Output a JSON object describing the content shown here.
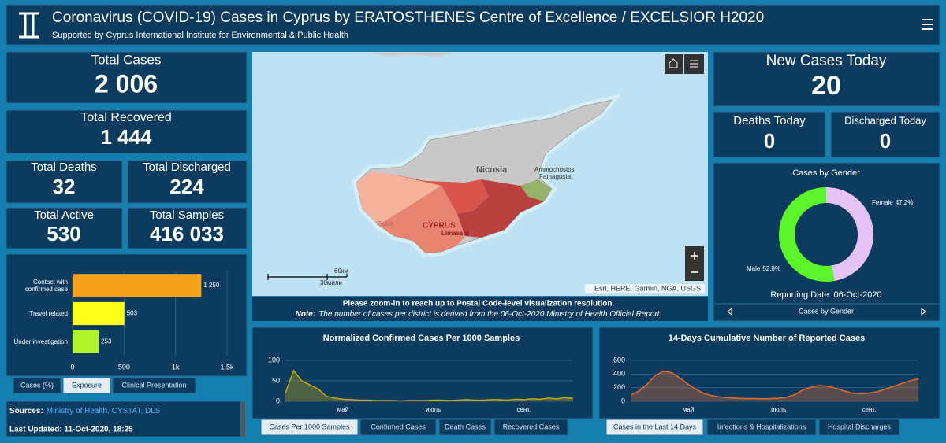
{
  "header": {
    "title": "Coronavirus (COVID-19) Cases in Cyprus by ERATOSTHENES Centre of Excellence / EXCELSIOR H2020",
    "subtitle": "Supported by Cyprus International Institute for Environmental & Public Health"
  },
  "stats": [
    {
      "label": "Total Cases",
      "value": "2 006"
    },
    {
      "label": "Total Recovered",
      "value": "1 444"
    },
    {
      "label": "Total Deaths",
      "value": "32"
    },
    {
      "label": "Total Discharged",
      "value": "224"
    },
    {
      "label": "Total Active",
      "value": "530"
    },
    {
      "label": "Total Samples",
      "value": "416 033"
    },
    {
      "label": "New Cases Today",
      "value": "20"
    },
    {
      "label": "Deaths Today",
      "value": "0"
    },
    {
      "label": "Discharged Today",
      "value": "0"
    }
  ],
  "map": {
    "labels": [
      "Nicosia",
      "Ammochostos",
      "Famagusta",
      "CYPRUS",
      "Limassol",
      "Pafos"
    ],
    "scale": [
      "60км",
      "30мили"
    ],
    "attribution": "Esri, HERE, Garmin, NGA, USGS",
    "zoom_note": "Please zoom-in to reach up to Postal Code-level visualization resolution.",
    "note_label": "Note:",
    "note_text": "The number of cases per district is derived from the 06-Oct-2020 Ministry of Health Official Report."
  },
  "sources": {
    "label": "Sources:",
    "links": "Ministry of Health, CYSTAT, DLS",
    "last_updated": "Last Updated: 11-Oct-2020, 18:25"
  },
  "tabs": {
    "exposure": [
      "Cases (%)",
      "Exposure",
      "Clinical Presentation"
    ],
    "samples": [
      "Cases Per 1000 Samples",
      "Confirmed Cases",
      "Death Cases",
      "Recovered Cases"
    ],
    "cumulative": [
      "Cases in the Last 14 Days",
      "Infections & Hospitalizations",
      "Hospital Discharges"
    ],
    "gender": "Cases by Gender"
  },
  "chart_data": [
    {
      "type": "hbar",
      "categories": [
        "Contact with confirmed case",
        "Travel related",
        "Under investigation"
      ],
      "values": [
        1250,
        503,
        253
      ],
      "value_labels": [
        "1 250",
        "503",
        "253"
      ],
      "colors": [
        "#f5a21a",
        "#ffff1a",
        "#b0f52a"
      ],
      "xlim": [
        0,
        1500
      ],
      "xticks": [
        0,
        500,
        {
          "value": 1000,
          "label": "1k"
        },
        {
          "value": 1500,
          "label": "1,5k"
        }
      ],
      "grid": true
    },
    {
      "type": "donut",
      "title": "Cases by Gender",
      "subtitle": "Reporting Date: 06-Oct-2020",
      "categories": [
        "Female",
        "Male"
      ],
      "values": [
        47.2,
        52.8
      ],
      "value_labels": [
        "47,2%",
        "52,8%"
      ],
      "colors": [
        "#e6c3f5",
        "#5cf52a"
      ]
    },
    {
      "type": "area",
      "title": "Normalized Confirmed Cases Per 1000 Samples",
      "categories": [
        null,
        null,
        null,
        null,
        null,
        null,
        null,
        "май",
        null,
        null,
        null,
        null,
        null,
        null,
        null,
        null,
        null,
        null,
        "июль",
        null,
        null,
        null,
        null,
        null,
        null,
        null,
        null,
        null,
        null,
        "сент.",
        null,
        null,
        null,
        null,
        null,
        null
      ],
      "values": [
        20,
        75,
        50,
        40,
        30,
        12,
        8,
        5,
        4,
        3,
        3,
        2,
        2,
        2,
        1,
        2,
        2,
        2,
        3,
        3,
        2,
        3,
        4,
        3,
        3,
        4,
        4,
        3,
        5,
        4,
        6,
        5,
        8,
        6,
        9,
        7
      ],
      "color": "#c9a60f",
      "ylim": [
        0,
        100
      ],
      "yticks": [
        0,
        50,
        100
      ]
    },
    {
      "type": "area",
      "title": "14-Days Cumulative Number of Reported Cases",
      "categories": [
        null,
        null,
        null,
        null,
        null,
        null,
        null,
        "май",
        null,
        null,
        null,
        null,
        null,
        null,
        null,
        null,
        null,
        null,
        "июль",
        null,
        null,
        null,
        null,
        null,
        null,
        null,
        null,
        null,
        null,
        "сент.",
        null,
        null,
        null,
        null,
        null,
        null
      ],
      "values": [
        90,
        150,
        250,
        380,
        440,
        420,
        340,
        250,
        170,
        110,
        80,
        60,
        50,
        45,
        40,
        40,
        38,
        40,
        45,
        60,
        100,
        170,
        210,
        230,
        220,
        190,
        150,
        120,
        110,
        120,
        140,
        180,
        220,
        260,
        300,
        330
      ],
      "color": "#e8692c",
      "ylim": [
        0,
        600
      ],
      "yticks": [
        0,
        200,
        400,
        600
      ]
    }
  ]
}
